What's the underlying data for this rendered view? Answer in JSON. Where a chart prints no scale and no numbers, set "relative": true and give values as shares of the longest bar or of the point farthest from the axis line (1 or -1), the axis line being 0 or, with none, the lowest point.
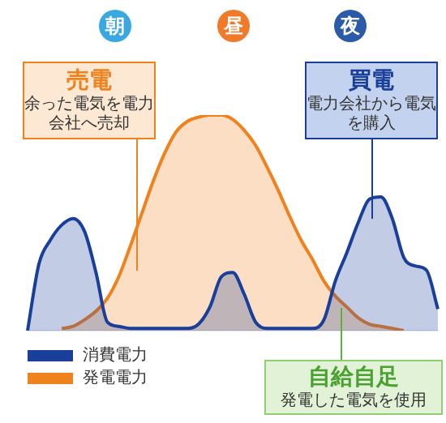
{
  "chart_data": {
    "type": "area",
    "relative": true,
    "legend": "bottom left",
    "marker": "none",
    "line_style": "solid",
    "categories": [
      null,
      null,
      null,
      null,
      null,
      null,
      null,
      null,
      null,
      null,
      null,
      null,
      null,
      null,
      null,
      null,
      null,
      null,
      null,
      null,
      null,
      null,
      null,
      null,
      null,
      null,
      null,
      null,
      null,
      null,
      null,
      null,
      null,
      null,
      null,
      null,
      null
    ],
    "series": [
      {
        "name": "消費電力",
        "color": "#1a3f9a",
        "values": [
          0,
          0.31,
          0.42,
          0.49,
          0.52,
          0.46,
          0.27,
          0.04,
          0.02,
          0.01,
          0.01,
          0.01,
          0.01,
          0.01,
          0.01,
          0.03,
          0.11,
          0.25,
          0.27,
          0.17,
          0.04,
          0.01,
          0.01,
          0.01,
          0.01,
          0.01,
          0.05,
          0.23,
          0.36,
          0.5,
          0.61,
          0.62,
          0.52,
          0.34,
          0.3,
          0.28,
          0.1
        ]
      },
      {
        "name": "発電電力",
        "color": "#f0821e",
        "values": [
          null,
          null,
          null,
          0.01,
          0.02,
          0.05,
          0.09,
          0.15,
          0.25,
          0.39,
          0.54,
          0.69,
          0.82,
          0.92,
          0.97,
          0.99,
          1,
          1,
          0.98,
          0.93,
          0.86,
          0.76,
          0.65,
          0.53,
          0.42,
          0.33,
          0.23,
          0.16,
          0.11,
          0.06,
          0.03,
          0.02,
          0.01,
          0,
          null,
          null,
          null
        ]
      }
    ],
    "annotations": [
      "朝",
      "昼",
      "夜",
      "売電",
      "余った電気を電力会社へ売却",
      "買電",
      "電力会社から電気を購入",
      "自給自足",
      "発電した電気を使用"
    ]
  }
}
